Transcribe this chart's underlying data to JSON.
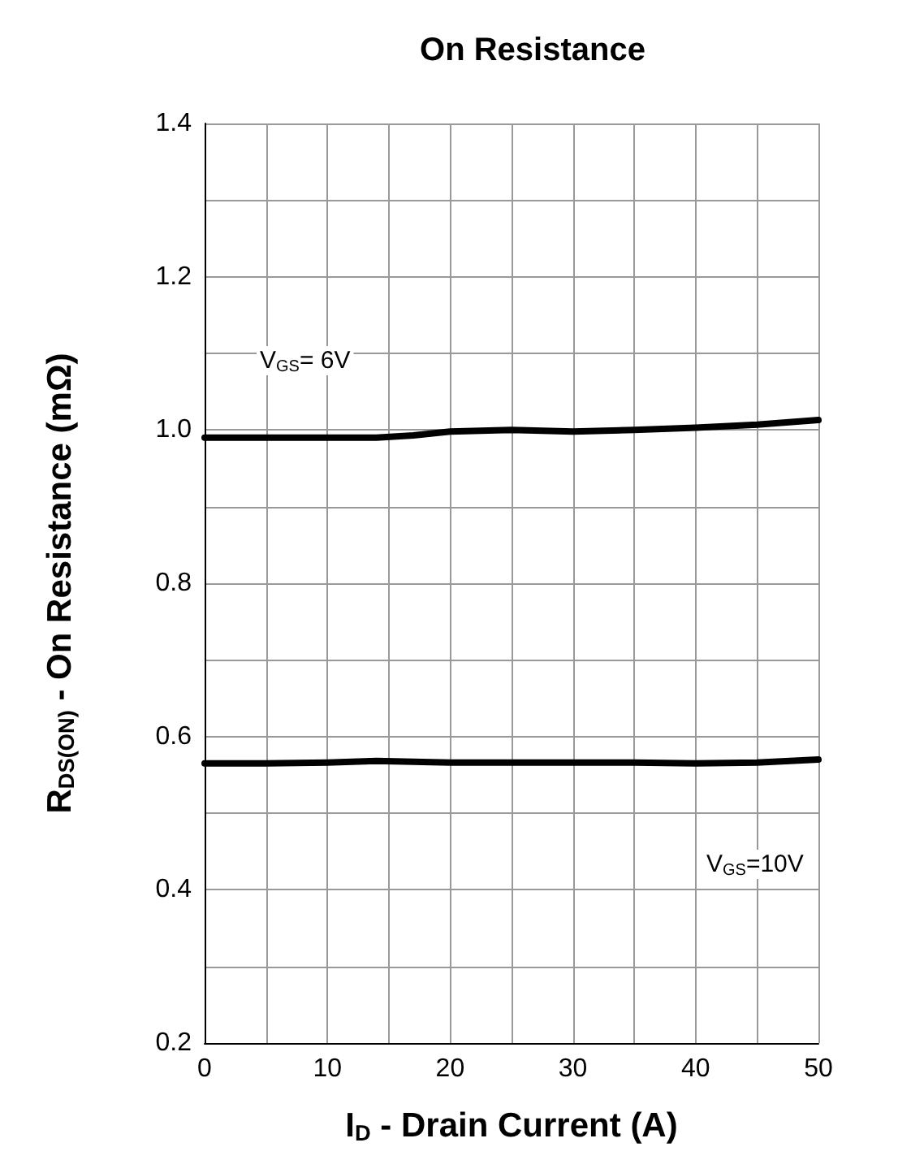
{
  "chart_data": {
    "type": "line",
    "title": "On Resistance",
    "xlabel": "I$_{D}$ - Drain Current (A)",
    "ylabel": "R$_{DS(ON)}$ - On Resistance (mΩ)",
    "xlim": [
      0,
      50
    ],
    "ylim": [
      0.2,
      1.4
    ],
    "xticks": [
      0,
      {
        "value": 5,
        "label": null
      },
      10,
      {
        "value": 15,
        "label": null
      },
      20,
      {
        "value": 25,
        "label": null
      },
      30,
      {
        "value": 35,
        "label": null
      },
      40,
      {
        "value": 45,
        "label": null
      },
      50
    ],
    "yticks": [
      {
        "value": 0.2,
        "label": "0.2"
      },
      {
        "value": 0.3,
        "label": null
      },
      {
        "value": 0.4,
        "label": "0.4"
      },
      {
        "value": 0.5,
        "label": null
      },
      {
        "value": 0.6,
        "label": "0.6"
      },
      {
        "value": 0.7,
        "label": null
      },
      {
        "value": 0.8,
        "label": "0.8"
      },
      {
        "value": 0.9,
        "label": null
      },
      {
        "value": 1.0,
        "label": "1.0"
      },
      {
        "value": 1.1,
        "label": null
      },
      {
        "value": 1.2,
        "label": "1.2"
      },
      {
        "value": 1.3,
        "label": null
      },
      {
        "value": 1.4,
        "label": "1.4"
      }
    ],
    "x": [
      0,
      5,
      10,
      14,
      17,
      20,
      25,
      30,
      35,
      40,
      45,
      50
    ],
    "series": [
      {
        "color": "#000000",
        "values": [
          0.99,
          0.99,
          0.99,
          0.99,
          0.993,
          0.998,
          1.0,
          0.998,
          1.0,
          1.003,
          1.007,
          1.013
        ]
      },
      {
        "color": "#000000",
        "values": [
          0.565,
          0.565,
          0.566,
          0.568,
          0.567,
          0.566,
          0.566,
          0.566,
          0.566,
          0.565,
          0.566,
          0.57
        ]
      }
    ],
    "annotations": [
      "V$_{GS}$= 6V",
      "V$_{GS}$=10V"
    ],
    "grid": true,
    "marker": "none",
    "line_style": "solid"
  }
}
